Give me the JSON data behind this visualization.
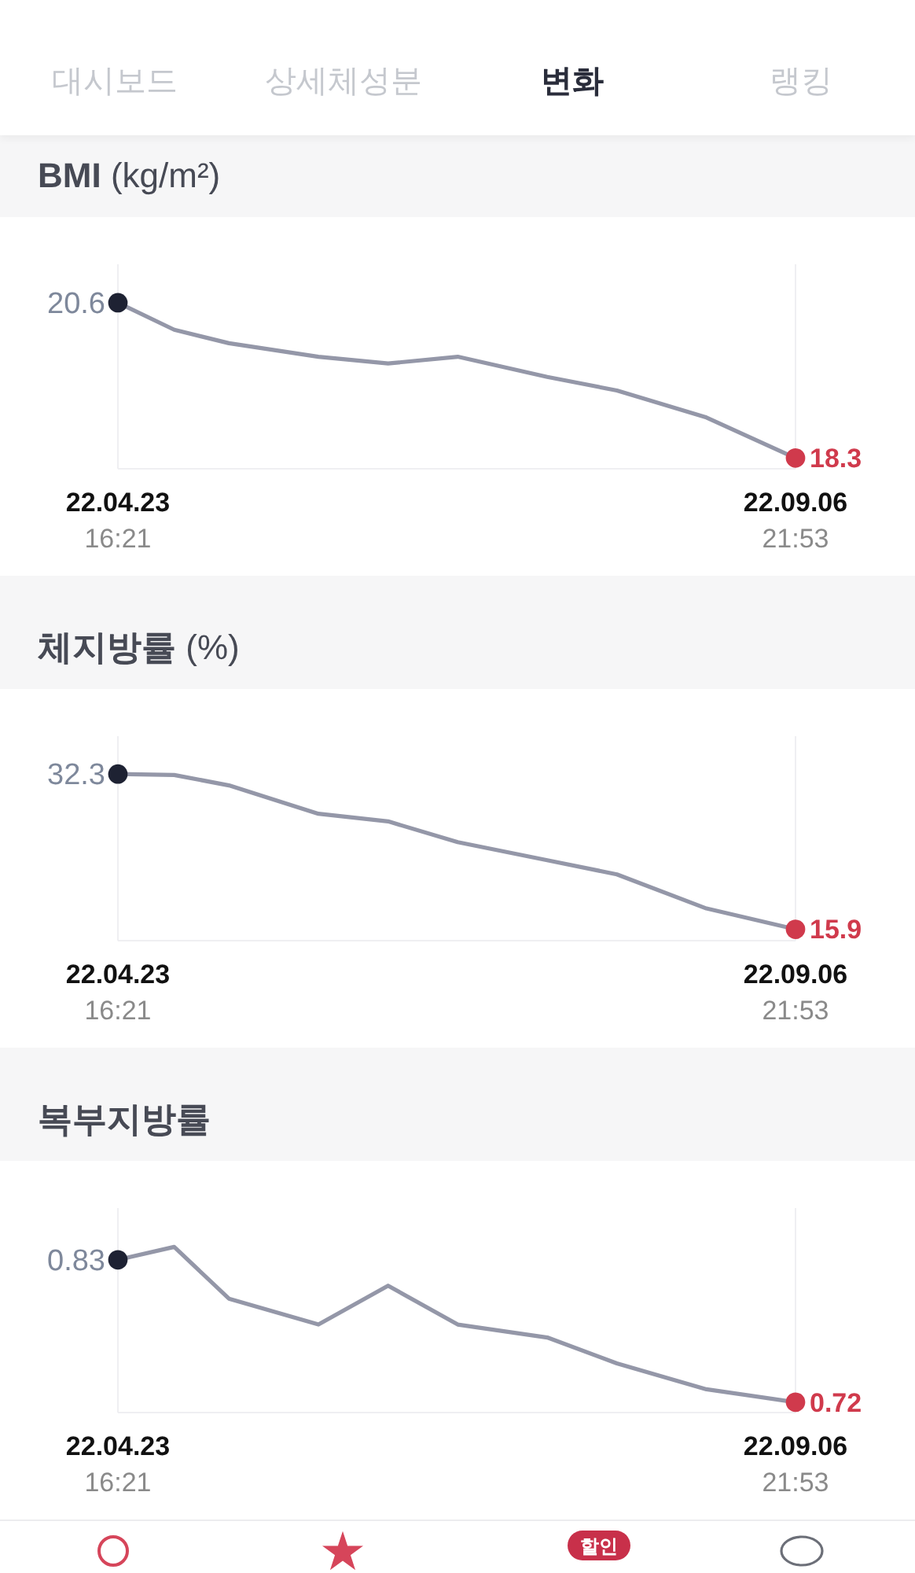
{
  "chart_data": [
    {
      "type": "other",
      "annotations": [
        "대시보드",
        "상세체성분",
        "변화",
        "랭킹"
      ],
      "colors": [
        "#c5c8ce",
        "#c5c8ce",
        "#2a2d3b",
        "#c5c8ce"
      ]
    },
    {
      "type": "line",
      "title": "BMI (kg/m²)",
      "x": [
        "--04-23T16:21",
        "--05-05",
        "--05-16",
        "--06-03",
        "--06-17",
        "--07-01",
        "--07-19",
        "--08-02",
        "--08-20",
        "--09-06T21:53"
      ],
      "series": [
        {
          "color": "#9497a8",
          "values": [
            20.6,
            20.2,
            20.0,
            19.8,
            19.7,
            19.8,
            19.5,
            19.3,
            18.9,
            18.3
          ]
        },
        {
          "type": "scatter",
          "x": [
            "--04-23T16:21",
            "--09-06T21:53"
          ],
          "values": [
            20.6,
            18.3
          ],
          "colors": [
            "#1e2233",
            "#d03a4c"
          ],
          "marker": "circle",
          "value_labels": [
            "20.6",
            "18.3"
          ]
        }
      ],
      "xlim": [
        "--04-23T16:21",
        "--09-06T21:53"
      ],
      "xticks": [
        {
          "value": "--04-23T16:21",
          "label": "22.04.23\n16:21"
        },
        {
          "value": "--09-06T21:53",
          "label": "22.09.06\n21:53"
        }
      ],
      "ylim": [
        18.14,
        21.17
      ],
      "grid": "x",
      "tick_labels": "x"
    },
    {
      "type": "line",
      "title": "체지방률 (%)",
      "x": [
        "--04-23T16:21",
        "--05-05",
        "--05-16",
        "--06-03",
        "--06-17",
        "--07-01",
        "--07-19",
        "--08-02",
        "--08-20",
        "--09-06T21:53"
      ],
      "series": [
        {
          "color": "#9497a8",
          "values": [
            32.3,
            32.2,
            31.1,
            28.1,
            27.3,
            25.1,
            23.2,
            21.7,
            18.1,
            15.9
          ]
        },
        {
          "type": "scatter",
          "x": [
            "--04-23T16:21",
            "--09-06T21:53"
          ],
          "values": [
            32.3,
            15.9
          ],
          "colors": [
            "#1e2233",
            "#d03a4c"
          ],
          "marker": "circle",
          "value_labels": [
            "32.3",
            "15.9"
          ]
        }
      ],
      "xlim": [
        "--04-23T16:21",
        "--09-06T21:53"
      ],
      "xticks": [
        {
          "value": "--04-23T16:21",
          "label": "22.04.23\n16:21"
        },
        {
          "value": "--09-06T21:53",
          "label": "22.09.06\n21:53"
        }
      ],
      "ylim": [
        14.7,
        36.3
      ],
      "grid": "x",
      "tick_labels": "x"
    },
    {
      "type": "line",
      "title": "복부지방률",
      "x": [
        "--04-23T16:21",
        "--05-05",
        "--05-16",
        "--06-03",
        "--06-17",
        "--07-01",
        "--07-19",
        "--08-02",
        "--08-20",
        "--09-06T21:53"
      ],
      "series": [
        {
          "color": "#9497a8",
          "values": [
            0.83,
            0.84,
            0.8,
            0.78,
            0.81,
            0.78,
            0.77,
            0.75,
            0.73,
            0.72
          ]
        },
        {
          "type": "scatter",
          "x": [
            "--04-23T16:21",
            "--09-06T21:53"
          ],
          "values": [
            0.83,
            0.72
          ],
          "colors": [
            "#1e2233",
            "#d03a4c"
          ],
          "marker": "circle",
          "value_labels": [
            "0.83",
            "0.72"
          ]
        }
      ],
      "xlim": [
        "--04-23T16:21",
        "--09-06T21:53"
      ],
      "xticks": [
        {
          "value": "--04-23T16:21",
          "label": "22.04.23\n16:21"
        },
        {
          "value": "--09-06T21:53",
          "label": "22.09.06\n21:53"
        }
      ],
      "ylim": [
        0.712,
        0.87
      ],
      "grid": "x",
      "tick_labels": "x"
    },
    {
      "type": "other",
      "annotations": [
        "할인"
      ]
    }
  ]
}
